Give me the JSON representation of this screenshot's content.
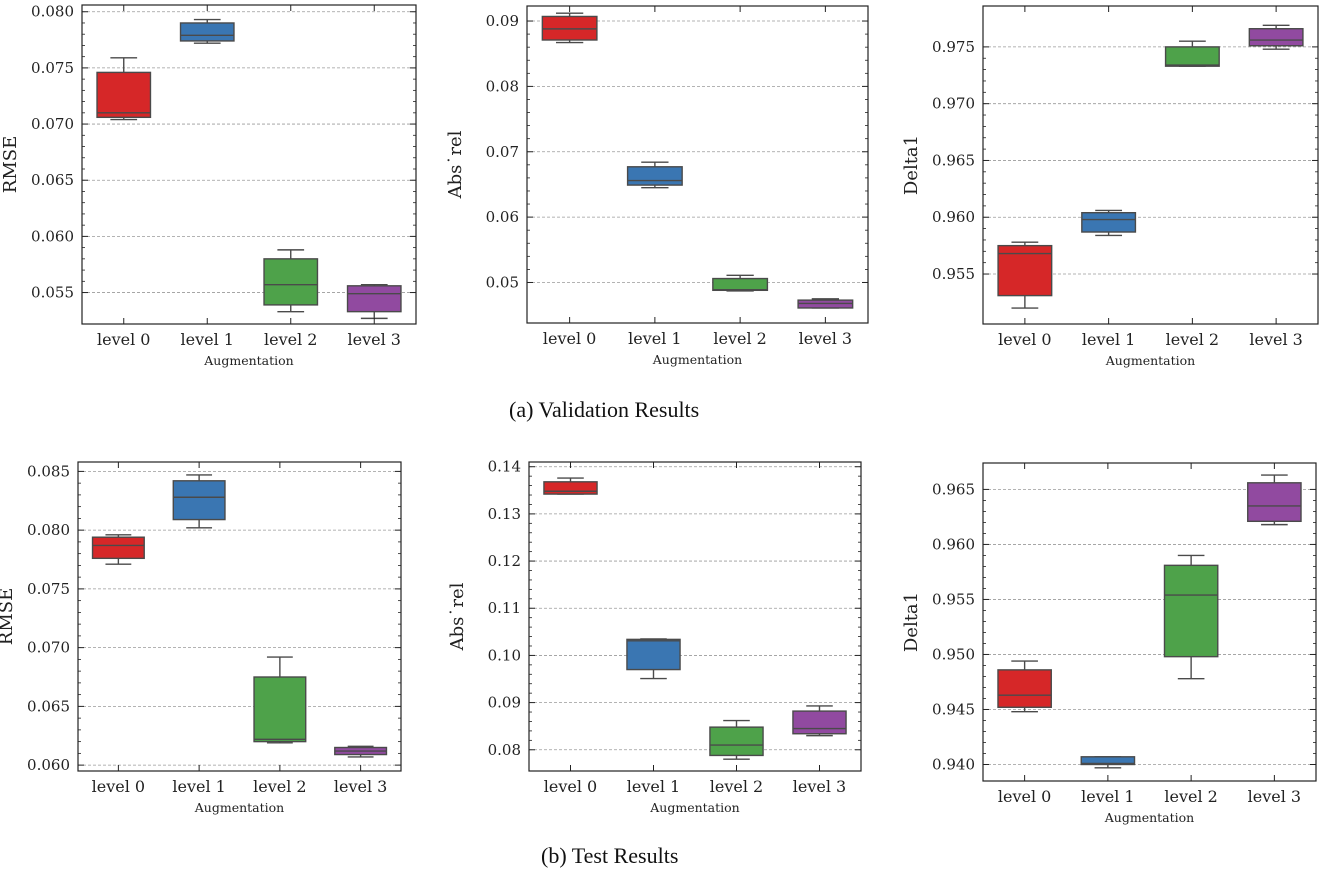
{
  "captions": {
    "validation": "(a) Validation Results",
    "test": "(b) Test Results"
  },
  "chart_data": [
    {
      "type": "box",
      "group": "validation",
      "ylabel": "RMSE",
      "xlabel": "Augmentation",
      "categories": [
        "level 0",
        "level 1",
        "level 2",
        "level 3"
      ],
      "colors": [
        "#d62728",
        "#3a76b2",
        "#4ea24a",
        "#914aa0"
      ],
      "ylim": [
        0.0522,
        0.0806
      ],
      "yticks": [
        0.055,
        0.06,
        0.065,
        0.07,
        0.075,
        0.08
      ],
      "ytick_labels": [
        "0.055",
        "0.060",
        "0.065",
        "0.070",
        "0.075",
        "0.080"
      ],
      "boxes": [
        {
          "whislo": 0.0704,
          "q1": 0.0706,
          "med": 0.071,
          "q3": 0.0746,
          "whishi": 0.0759
        },
        {
          "whislo": 0.0772,
          "q1": 0.0774,
          "med": 0.0779,
          "q3": 0.079,
          "whishi": 0.0793
        },
        {
          "whislo": 0.0533,
          "q1": 0.0539,
          "med": 0.0557,
          "q3": 0.058,
          "whishi": 0.0588
        },
        {
          "whislo": 0.0527,
          "q1": 0.0533,
          "med": 0.0549,
          "q3": 0.0556,
          "whishi": 0.0557
        }
      ]
    },
    {
      "type": "box",
      "group": "validation",
      "ylabel": "Abs˙rel",
      "xlabel": "Augmentation",
      "categories": [
        "level 0",
        "level 1",
        "level 2",
        "level 3"
      ],
      "colors": [
        "#d62728",
        "#3a76b2",
        "#4ea24a",
        "#914aa0"
      ],
      "ylim": [
        0.0438,
        0.0923
      ],
      "yticks": [
        0.05,
        0.06,
        0.07,
        0.08,
        0.09
      ],
      "ytick_labels": [
        "0.05",
        "0.06",
        "0.07",
        "0.08",
        "0.09"
      ],
      "boxes": [
        {
          "whislo": 0.0867,
          "q1": 0.0871,
          "med": 0.0888,
          "q3": 0.0907,
          "whishi": 0.0912
        },
        {
          "whislo": 0.0645,
          "q1": 0.0649,
          "med": 0.0656,
          "q3": 0.0677,
          "whishi": 0.0684
        },
        {
          "whislo": 0.0487,
          "q1": 0.0488,
          "med": 0.0489,
          "q3": 0.0506,
          "whishi": 0.0511
        },
        {
          "whislo": 0.0461,
          "q1": 0.0461,
          "med": 0.0468,
          "q3": 0.0473,
          "whishi": 0.0475
        }
      ]
    },
    {
      "type": "box",
      "group": "validation",
      "ylabel": "Delta1",
      "xlabel": "Augmentation",
      "categories": [
        "level 0",
        "level 1",
        "level 2",
        "level 3"
      ],
      "colors": [
        "#d62728",
        "#3a76b2",
        "#4ea24a",
        "#914aa0"
      ],
      "ylim": [
        0.9506,
        0.9786
      ],
      "yticks": [
        0.955,
        0.96,
        0.965,
        0.97,
        0.975
      ],
      "ytick_labels": [
        "0.955",
        "0.960",
        "0.965",
        "0.970",
        "0.975"
      ],
      "boxes": [
        {
          "whislo": 0.952,
          "q1": 0.9531,
          "med": 0.9568,
          "q3": 0.9575,
          "whishi": 0.9578
        },
        {
          "whislo": 0.9584,
          "q1": 0.9587,
          "med": 0.9598,
          "q3": 0.9604,
          "whishi": 0.9606
        },
        {
          "whislo": 0.9733,
          "q1": 0.9733,
          "med": 0.9734,
          "q3": 0.975,
          "whishi": 0.9755
        },
        {
          "whislo": 0.9748,
          "q1": 0.9751,
          "med": 0.9756,
          "q3": 0.9766,
          "whishi": 0.9769
        }
      ]
    },
    {
      "type": "box",
      "group": "test",
      "ylabel": "RMSE",
      "xlabel": "Augmentation",
      "categories": [
        "level 0",
        "level 1",
        "level 2",
        "level 3"
      ],
      "colors": [
        "#d62728",
        "#3a76b2",
        "#4ea24a",
        "#914aa0"
      ],
      "ylim": [
        0.0595,
        0.0858
      ],
      "yticks": [
        0.06,
        0.065,
        0.07,
        0.075,
        0.08,
        0.085
      ],
      "ytick_labels": [
        "0.060",
        "0.065",
        "0.070",
        "0.075",
        "0.080",
        "0.085"
      ],
      "boxes": [
        {
          "whislo": 0.0771,
          "q1": 0.0776,
          "med": 0.0787,
          "q3": 0.0794,
          "whishi": 0.0796
        },
        {
          "whislo": 0.0802,
          "q1": 0.0809,
          "med": 0.0828,
          "q3": 0.0842,
          "whishi": 0.0847
        },
        {
          "whislo": 0.0619,
          "q1": 0.062,
          "med": 0.0622,
          "q3": 0.0675,
          "whishi": 0.0692
        },
        {
          "whislo": 0.0607,
          "q1": 0.0609,
          "med": 0.0612,
          "q3": 0.0615,
          "whishi": 0.0616
        }
      ]
    },
    {
      "type": "box",
      "group": "test",
      "ylabel": "Abs˙rel",
      "xlabel": "Augmentation",
      "categories": [
        "level 0",
        "level 1",
        "level 2",
        "level 3"
      ],
      "colors": [
        "#d62728",
        "#3a76b2",
        "#4ea24a",
        "#914aa0"
      ],
      "ylim": [
        0.0755,
        0.141
      ],
      "yticks": [
        0.08,
        0.09,
        0.1,
        0.11,
        0.12,
        0.13,
        0.14
      ],
      "ytick_labels": [
        "0.08",
        "0.09",
        "0.10",
        "0.11",
        "0.12",
        "0.13",
        "0.14"
      ],
      "boxes": [
        {
          "whislo": 0.1342,
          "q1": 0.1342,
          "med": 0.1348,
          "q3": 0.1368,
          "whishi": 0.1376
        },
        {
          "whislo": 0.0951,
          "q1": 0.097,
          "med": 0.1031,
          "q3": 0.1034,
          "whishi": 0.1035
        },
        {
          "whislo": 0.078,
          "q1": 0.0788,
          "med": 0.081,
          "q3": 0.0848,
          "whishi": 0.0862
        },
        {
          "whislo": 0.083,
          "q1": 0.0834,
          "med": 0.0845,
          "q3": 0.0882,
          "whishi": 0.0893
        }
      ]
    },
    {
      "type": "box",
      "group": "test",
      "ylabel": "Delta1",
      "xlabel": "Augmentation",
      "categories": [
        "level 0",
        "level 1",
        "level 2",
        "level 3"
      ],
      "colors": [
        "#d62728",
        "#3a76b2",
        "#4ea24a",
        "#914aa0"
      ],
      "ylim": [
        0.9385,
        0.9674
      ],
      "yticks": [
        0.94,
        0.945,
        0.95,
        0.955,
        0.96,
        0.965
      ],
      "ytick_labels": [
        "0.940",
        "0.945",
        "0.950",
        "0.955",
        "0.960",
        "0.965"
      ],
      "boxes": [
        {
          "whislo": 0.9448,
          "q1": 0.9452,
          "med": 0.9463,
          "q3": 0.9486,
          "whishi": 0.9494
        },
        {
          "whislo": 0.9397,
          "q1": 0.94,
          "med": 0.9401,
          "q3": 0.9407,
          "whishi": 0.9407
        },
        {
          "whislo": 0.9478,
          "q1": 0.9498,
          "med": 0.9554,
          "q3": 0.9581,
          "whishi": 0.959
        },
        {
          "whislo": 0.9618,
          "q1": 0.9621,
          "med": 0.9635,
          "q3": 0.9656,
          "whishi": 0.9663
        }
      ]
    }
  ]
}
